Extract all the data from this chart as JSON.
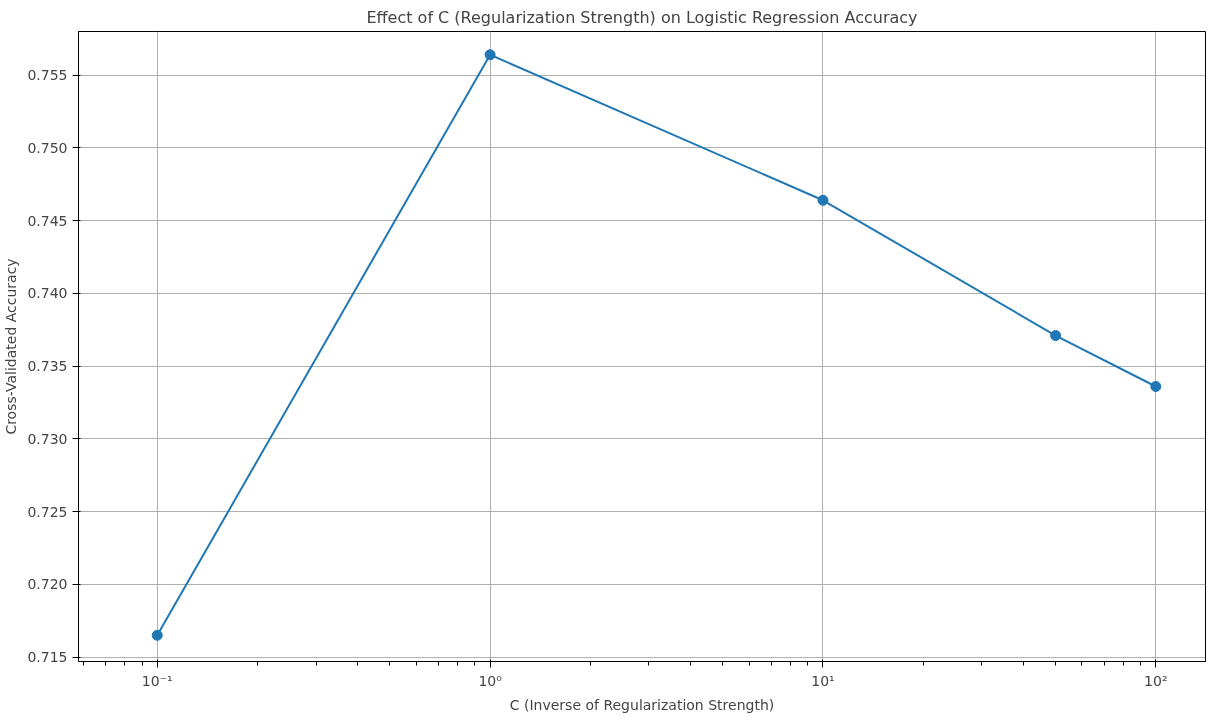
{
  "chart_data": {
    "type": "line",
    "title": "Effect of C (Regularization Strength) on Logistic Regression Accuracy",
    "xlabel": "C (Inverse of Regularization Strength)",
    "ylabel": "Cross-Validated Accuracy",
    "x": [
      0.1,
      1,
      10,
      50,
      100
    ],
    "series": [
      {
        "color": "#1f77b4",
        "values": [
          0.7165,
          0.7564,
          0.7464,
          0.7371,
          0.7336
        ]
      }
    ],
    "log": "x",
    "xlim": [
      0.058,
      141
    ],
    "ylim": [
      0.7147,
      0.758
    ],
    "xticks": [
      {
        "value": 0.1,
        "label": "10⁻¹"
      },
      {
        "value": 1,
        "label": "10⁰"
      },
      {
        "value": 10,
        "label": "10¹"
      },
      {
        "value": 100,
        "label": "10²"
      }
    ],
    "yticks": [
      0.715,
      {
        "value": 0.72,
        "label": "0.720"
      },
      0.725,
      {
        "value": 0.73,
        "label": "0.730"
      },
      0.735,
      {
        "value": 0.74,
        "label": "0.740"
      },
      0.745,
      {
        "value": 0.75,
        "label": "0.750"
      },
      0.755
    ],
    "grid": true,
    "marker": "circle",
    "line_style": "solid"
  }
}
